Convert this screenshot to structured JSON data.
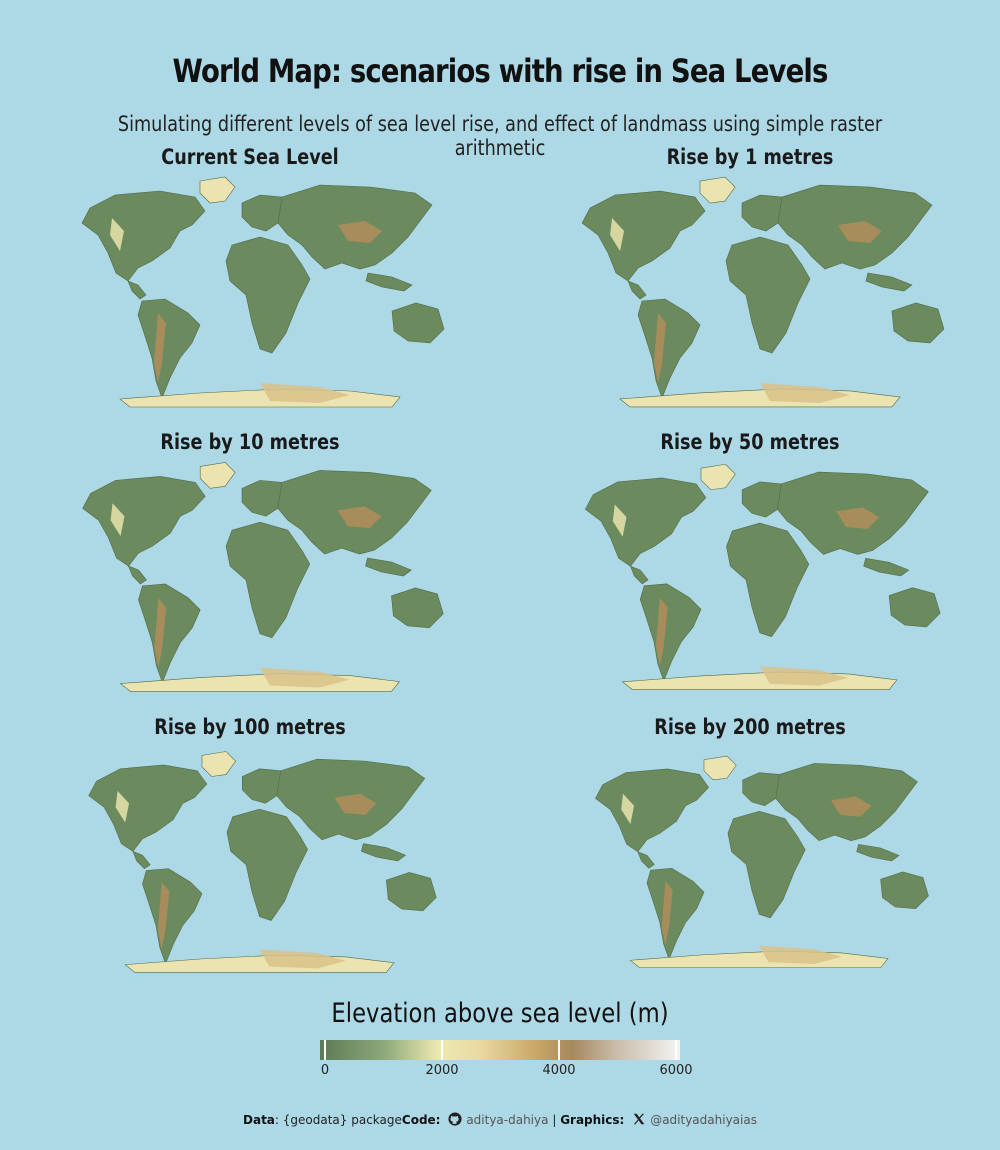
{
  "title": "World Map: scenarios with rise in Sea Levels",
  "subtitle": "Simulating different levels of sea level rise, and effect of landmass using simple raster arithmetic",
  "panels": [
    {
      "label": "Current Sea Level",
      "rise": 0
    },
    {
      "label": "Rise by 1 metres",
      "rise": 1
    },
    {
      "label": "Rise by 10 metres",
      "rise": 10
    },
    {
      "label": "Rise by 50 metres",
      "rise": 50
    },
    {
      "label": "Rise by 100 metres",
      "rise": 100
    },
    {
      "label": "Rise by 200 metres",
      "rise": 200
    }
  ],
  "legend": {
    "title": "Elevation above sea level (m)",
    "ticks": [
      "0",
      "2000",
      "4000",
      "6000"
    ]
  },
  "caption": {
    "data_label": "Data",
    "data_text": ": {geodata} package",
    "code_label": "Code:",
    "code_handle": "aditya-dahiya",
    "separator": "|",
    "graphics_label": "Graphics:",
    "graphics_handle": "@adityadahiyaias",
    "code_icon": "github-icon",
    "graphics_icon": "x-icon"
  },
  "colors": {
    "ocean": "#add8e6",
    "lowland": "#6b8a5e",
    "midland": "#e9e3ad",
    "highland": "#b08d5a",
    "ice": "#ece4b0"
  }
}
